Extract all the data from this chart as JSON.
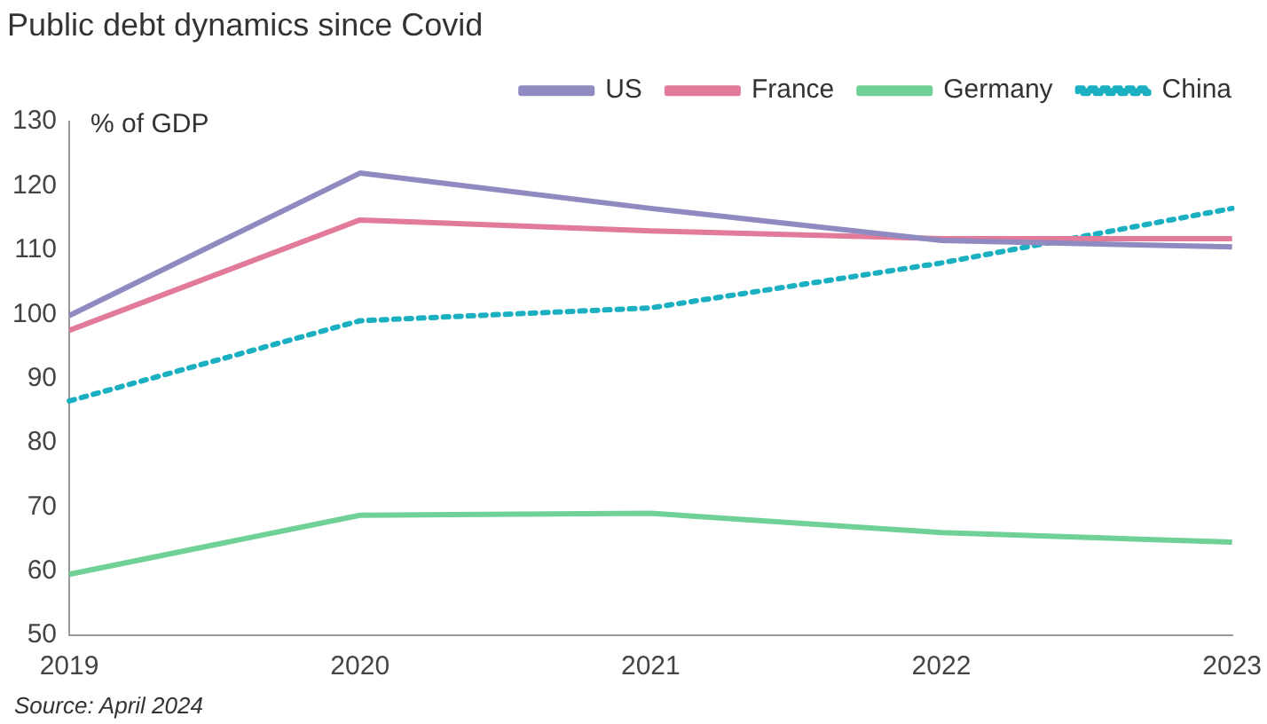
{
  "chart_data": {
    "type": "line",
    "title": "Public debt dynamics since Covid",
    "ylabel": "% of GDP",
    "categories": [
      "2019",
      "2020",
      "2021",
      "2022",
      "2023"
    ],
    "series": [
      {
        "name": "US",
        "color": "#8f8ac0",
        "values": [
          99.8,
          122,
          116.5,
          111.5,
          110.5
        ]
      },
      {
        "name": "France",
        "color": "#e27a9a",
        "values": [
          97.5,
          114.7,
          113,
          111.8,
          111.8
        ]
      },
      {
        "name": "Germany",
        "color": "#6fd196",
        "values": [
          59.5,
          68.7,
          69,
          66,
          64.5
        ]
      },
      {
        "name": "China",
        "color": "#1ab0c2",
        "values": [
          86.5,
          99,
          101,
          108,
          116.5
        ],
        "line_style": "dotted"
      }
    ],
    "ylim": [
      50,
      130
    ],
    "yticks": [
      50,
      60,
      70,
      80,
      90,
      100,
      110,
      120,
      130
    ],
    "grid": false,
    "legend": "top right",
    "marker": "none",
    "annotations": [
      "Source: April 2024"
    ]
  }
}
